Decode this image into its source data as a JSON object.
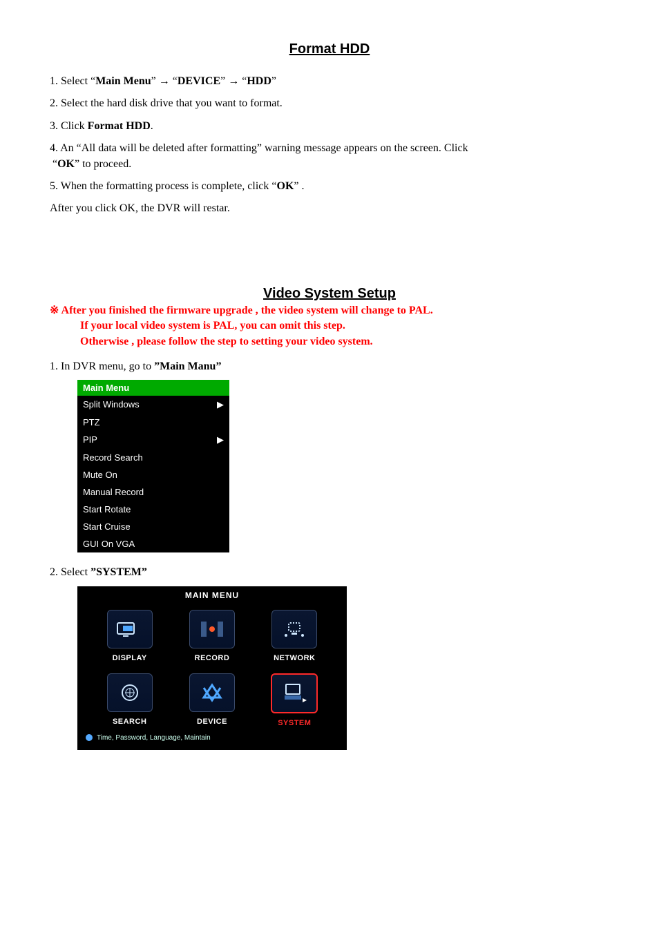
{
  "title1": "Format HDD",
  "step1": {
    "num": "1. Select ",
    "q1": "“",
    "main": "Main Menu",
    "q2": "” ",
    "arrow1": "→   ",
    "q3": "“",
    "device": "DEVICE",
    "q4": "” ",
    "arrow2": "→   ",
    "q5": "“",
    "hdd": "HDD",
    "q6": "”"
  },
  "step2": "2. Select the hard disk drive that you want to format.",
  "step3": {
    "pre": "3. Click ",
    "bold": "Format HDD",
    "post": "."
  },
  "step4": {
    "line1a": "4. An “All data will be deleted after formatting” warning message appears on the screen. Click",
    "q1": "“",
    "ok": "OK",
    "q2": "”",
    "post": "   to proceed."
  },
  "step5": {
    "pre": "5. When the formatting process is complete, click   ",
    "q1": "“",
    "ok": "OK",
    "q2": "”",
    "post": " ."
  },
  "after": "After you click OK, the DVR will restar.",
  "title2": "Video System Setup",
  "warn_sym": "※ ",
  "warn": {
    "l1": "After you finished the firmware upgrade , the video system will change to PAL.",
    "l2": "If your local video system is PAL, you can omit this step.",
    "l3": "Otherwise , please follow the step to setting your video system."
  },
  "vs1": {
    "num": "1.",
    "pre": "  In DVR menu, go to ",
    "bold": "”Main Manu”"
  },
  "menu": {
    "title": "Main  Menu",
    "items": [
      {
        "label": "Split  Windows",
        "arrow": true
      },
      {
        "label": "PTZ",
        "arrow": false
      },
      {
        "label": "PIP",
        "arrow": true
      },
      {
        "label": "Record  Search",
        "arrow": false
      },
      {
        "label": "Mute  On",
        "arrow": false
      },
      {
        "label": "Manual  Record",
        "arrow": false
      },
      {
        "label": "Start  Rotate",
        "arrow": false
      },
      {
        "label": "Start  Cruise",
        "arrow": false
      },
      {
        "label": "GUI  On  VGA",
        "arrow": false
      }
    ]
  },
  "vs2": {
    "num": "2.",
    "pre": "  Select ",
    "bold": "”SYSTEM”"
  },
  "mainmenu": {
    "header": "MAIN  MENU",
    "cells": [
      {
        "label": "DISPLAY",
        "icon": "display"
      },
      {
        "label": "RECORD",
        "icon": "record"
      },
      {
        "label": "NETWORK",
        "icon": "network"
      },
      {
        "label": "SEARCH",
        "icon": "search"
      },
      {
        "label": "DEVICE",
        "icon": "device"
      },
      {
        "label": "SYSTEM",
        "icon": "system",
        "selected": true
      }
    ],
    "footer": "Time, Password, Language, Maintain"
  },
  "colors": {
    "text": "#000000",
    "warn": "#ff0000",
    "menu_bg": "#000000",
    "menu_title_bg": "#00aa00",
    "selected_border": "#ff2a2a",
    "icon_border": "#3a4a6a"
  }
}
